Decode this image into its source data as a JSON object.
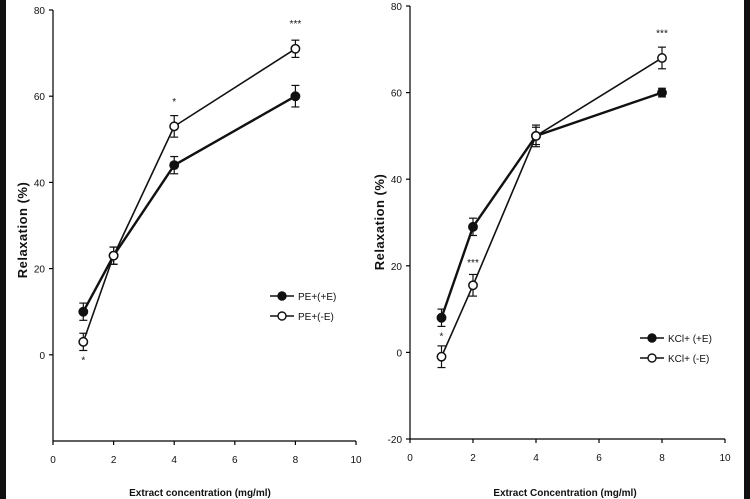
{
  "chart_data": [
    {
      "type": "line",
      "ylabel": "Relaxation (%)",
      "xlabel": "Extract concentration (mg/ml)",
      "xlim": [
        0,
        10
      ],
      "ylim": [
        -20,
        80
      ],
      "xticks": [
        0,
        2,
        4,
        6,
        8,
        10
      ],
      "yticks": [
        0,
        20,
        40,
        60,
        80
      ],
      "legend_position": "right",
      "series": [
        {
          "name": "PE+(+E)",
          "marker": "filled-circle",
          "x": [
            1,
            2,
            4,
            8
          ],
          "y": [
            10,
            23,
            44,
            60
          ],
          "err": [
            2,
            2,
            2,
            2.5
          ]
        },
        {
          "name": "PE+(-E)",
          "marker": "open-circle",
          "x": [
            1,
            2,
            4,
            8
          ],
          "y": [
            3,
            23,
            53,
            71
          ],
          "err": [
            2,
            2,
            2.5,
            2
          ]
        }
      ],
      "annotations": [
        {
          "text": "*",
          "x": 1,
          "y": -2
        },
        {
          "text": "*",
          "x": 4,
          "y": 58
        },
        {
          "text": "***",
          "x": 8,
          "y": 76
        }
      ]
    },
    {
      "type": "line",
      "ylabel": "Relaxation (%)",
      "xlabel": "Extract Concentration (mg/ml)",
      "xlim": [
        0,
        10
      ],
      "ylim": [
        -20,
        80
      ],
      "xticks": [
        0,
        2,
        4,
        6,
        8,
        10
      ],
      "yticks": [
        -20,
        0,
        20,
        40,
        60,
        80
      ],
      "legend_position": "bottom-right",
      "series": [
        {
          "name": "KCl+ (+E)",
          "marker": "filled-circle",
          "x": [
            1,
            2,
            4,
            8
          ],
          "y": [
            8,
            29,
            50,
            60
          ],
          "err": [
            2,
            2,
            2,
            1
          ]
        },
        {
          "name": "KCl+ (-E)",
          "marker": "open-circle",
          "x": [
            1,
            2,
            4,
            8
          ],
          "y": [
            -1,
            15.5,
            50,
            68
          ],
          "err": [
            2.5,
            2.5,
            2.5,
            2.5
          ]
        }
      ],
      "annotations": [
        {
          "text": "*",
          "x": 1,
          "y": 3
        },
        {
          "text": "***",
          "x": 2,
          "y": 20
        },
        {
          "text": "***",
          "x": 8,
          "y": 73
        }
      ]
    }
  ]
}
